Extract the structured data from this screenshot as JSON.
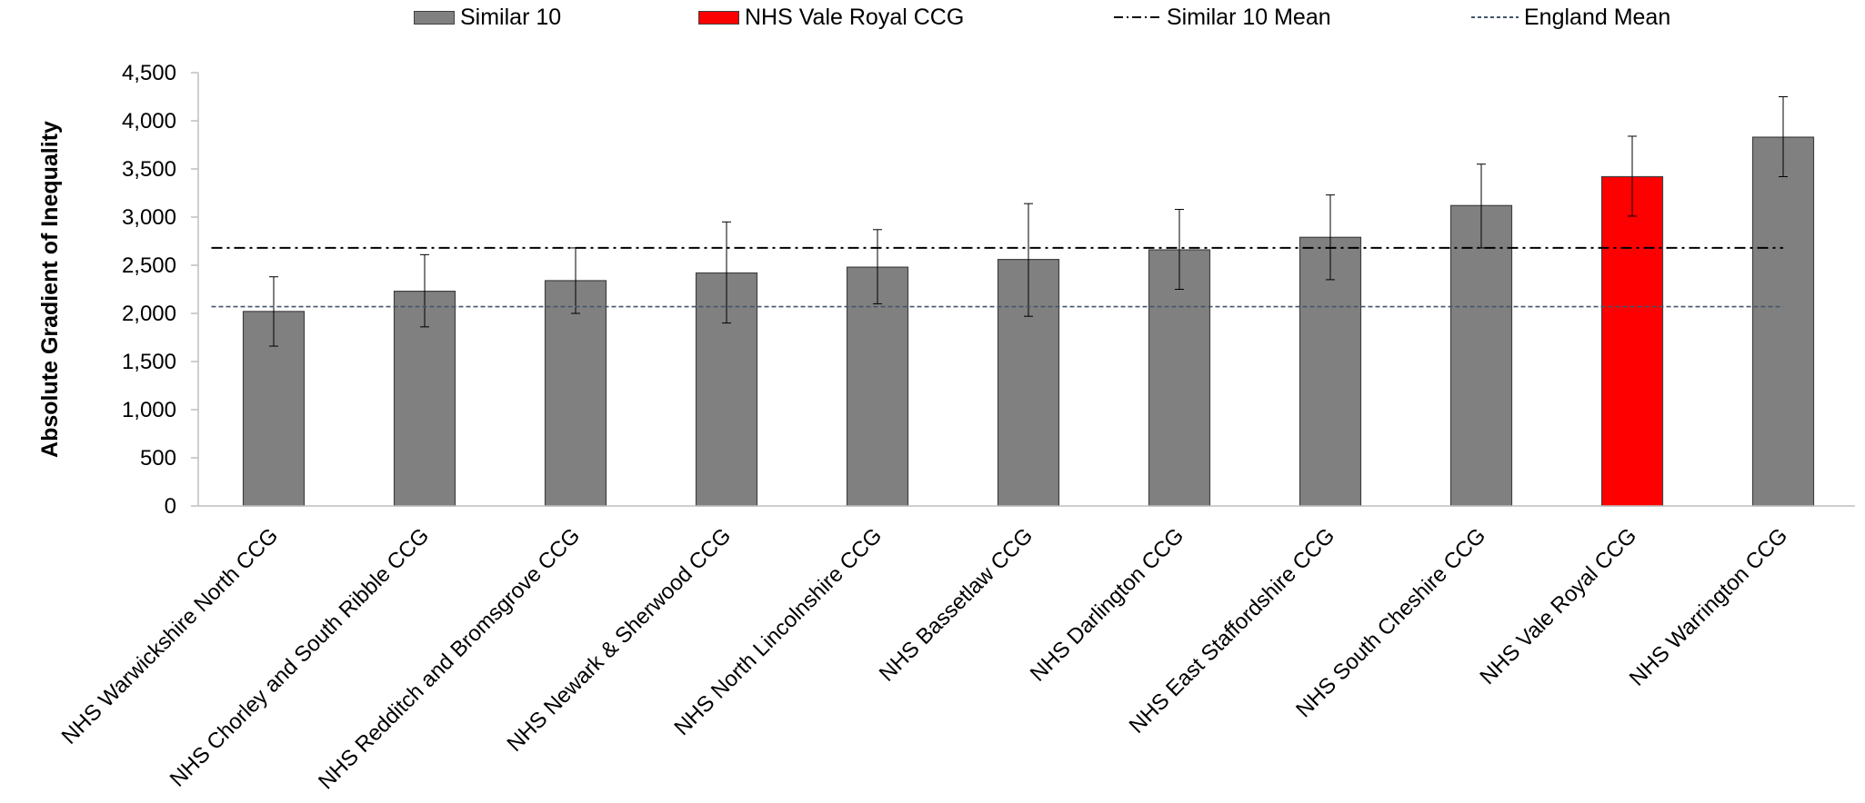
{
  "chart_data": {
    "type": "bar",
    "ylabel": "Absolute Gradient of Inequality",
    "xlabel": "",
    "ylim": [
      0,
      4500
    ],
    "yticks": [
      0,
      500,
      1000,
      1500,
      2000,
      2500,
      3000,
      3500,
      4000,
      4500
    ],
    "ytick_labels": [
      "0",
      "500",
      "1,000",
      "1,500",
      "2,000",
      "2,500",
      "3,000",
      "3,500",
      "4,000",
      "4,500"
    ],
    "grid": false,
    "legend_placement": "top",
    "categories": [
      "NHS Warwickshire North CCG",
      "NHS Chorley and South Ribble CCG",
      "NHS Redditch and Bromsgrove CCG",
      "NHS Newark & Sherwood CCG",
      "NHS North Lincolnshire CCG",
      "NHS Bassetlaw CCG",
      "NHS Darlington CCG",
      "NHS East Staffordshire CCG",
      "NHS South Cheshire CCG",
      "NHS Vale Royal CCG",
      "NHS Warrington CCG"
    ],
    "values": [
      2020,
      2230,
      2340,
      2420,
      2480,
      2560,
      2660,
      2790,
      3120,
      3420,
      3830
    ],
    "error_low": [
      1660,
      1860,
      2000,
      1900,
      2100,
      1970,
      2250,
      2350,
      2680,
      3010,
      3420
    ],
    "error_high": [
      2380,
      2610,
      2680,
      2950,
      2870,
      3140,
      3080,
      3230,
      3550,
      3840,
      4250
    ],
    "highlight_index": 9,
    "colors": {
      "bar": "#808080",
      "highlight": "#ff0000",
      "bar_border": "#404040",
      "similar_mean_line": "#000000",
      "england_mean_line": "#44546a"
    },
    "reference_lines": [
      {
        "name": "Similar 10 Mean",
        "value": 2680,
        "style": "dash-dot"
      },
      {
        "name": "England Mean",
        "value": 2070,
        "style": "dashed"
      }
    ],
    "legend": [
      {
        "label": "Similar 10",
        "kind": "bar-gray"
      },
      {
        "label": "NHS Vale Royal CCG",
        "kind": "bar-red"
      },
      {
        "label": "Similar 10 Mean",
        "kind": "line-dashdot"
      },
      {
        "label": "England Mean",
        "kind": "line-dashed"
      }
    ]
  }
}
